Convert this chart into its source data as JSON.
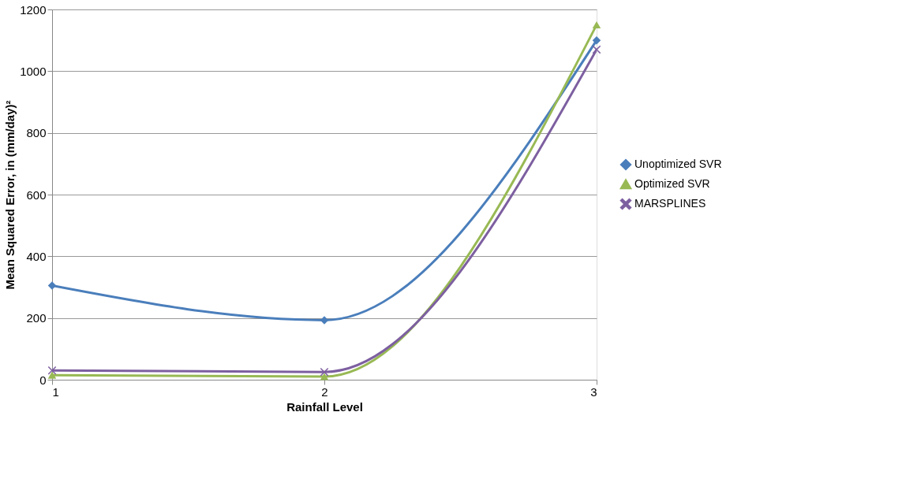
{
  "chart_data": {
    "type": "line",
    "xlabel": "Rainfall Level",
    "ylabel": "Mean Squared Error, in (mm/day)²",
    "x": [
      1,
      2,
      3
    ],
    "xlim": [
      1,
      3
    ],
    "xticks": [
      1,
      2,
      3
    ],
    "ylim": [
      0,
      1200
    ],
    "yticks": [
      0,
      200,
      400,
      600,
      800,
      1000,
      1200
    ],
    "grid": "y",
    "legend": "right",
    "series": [
      {
        "name": "Unoptimized SVR",
        "color": "#4a7ebb",
        "marker": "diamond",
        "values": [
          305,
          193,
          1100
        ]
      },
      {
        "name": "Optimized SVR",
        "color": "#98b954",
        "marker": "triangle",
        "values": [
          15,
          10,
          1150
        ]
      },
      {
        "name": "MARSPLINES",
        "color": "#7d5fa0",
        "marker": "cross",
        "values": [
          30,
          25,
          1070
        ]
      }
    ]
  }
}
